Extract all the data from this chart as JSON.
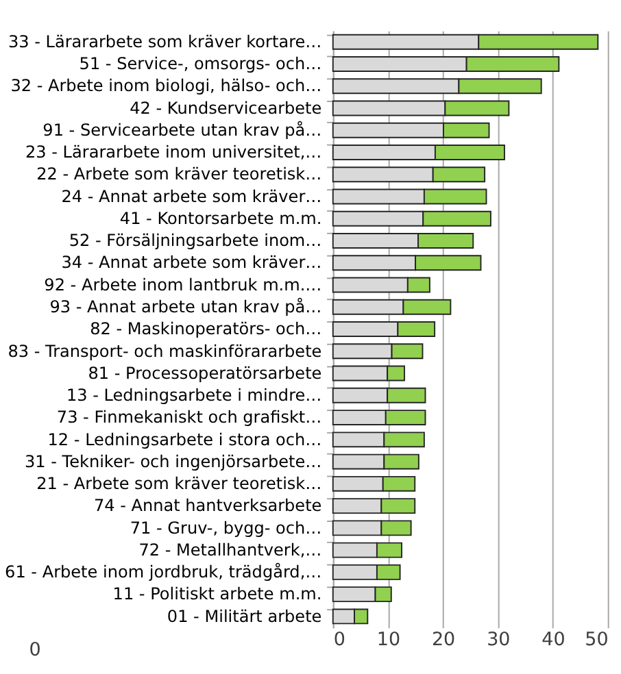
{
  "chart_data": {
    "type": "bar",
    "orientation": "horizontal",
    "stacked": true,
    "categories": [
      "33 - Lärararbete som kräver kortare…",
      "51 - Service-, omsorgs- och…",
      "32 - Arbete inom biologi, hälso- och…",
      "42 - Kundservicearbete",
      "91 - Servicearbete utan krav på…",
      "23 - Lärararbete inom universitet,…",
      "22 - Arbete som kräver teoretisk…",
      "24 - Annat arbete som kräver…",
      "41 - Kontorsarbete m.m.",
      "52 - Försäljningsarbete inom…",
      "34 - Annat arbete som kräver…",
      "92 - Arbete inom lantbruk m.m.…",
      "93 - Annat arbete utan krav på…",
      "82 - Maskinoperatörs- och…",
      "83 - Transport- och maskinförararbete",
      "81 - Processoperatörsarbete",
      "13 - Ledningsarbete i mindre…",
      "73 - Finmekaniskt och grafiskt…",
      "12 - Ledningsarbete i stora och…",
      "31 - Tekniker- och ingenjörsarbete…",
      "21 - Arbete som kräver teoretisk…",
      "74 - Annat hantverksarbete",
      "71 - Gruv-, bygg- och…",
      "72 - Metallhantverk,…",
      "61 - Arbete inom jordbruk, trädgård,…",
      "11 - Politiskt arbete m.m.",
      "01 - Militärt arbete"
    ],
    "series": [
      {
        "color": "#d9d9d9",
        "values": [
          26.5,
          24.3,
          22.9,
          20.4,
          20.1,
          18.6,
          18.2,
          16.6,
          16.4,
          15.5,
          15.0,
          13.6,
          12.8,
          11.8,
          10.7,
          9.9,
          9.9,
          9.6,
          9.3,
          9.3,
          9.1,
          8.8,
          8.8,
          8.0,
          8.0,
          7.7,
          3.9
        ]
      },
      {
        "color": "#92d050",
        "values": [
          21.7,
          16.8,
          15.0,
          11.6,
          8.3,
          12.6,
          9.4,
          11.3,
          12.3,
          10.0,
          11.9,
          4.0,
          8.6,
          6.7,
          5.6,
          3.1,
          6.9,
          7.2,
          7.3,
          6.3,
          5.8,
          6.1,
          5.4,
          4.5,
          4.2,
          2.9,
          2.4
        ]
      }
    ],
    "xlim": [
      0,
      50
    ],
    "xticks": [
      0,
      10,
      20,
      30,
      40,
      50
    ],
    "grid": "x",
    "legend": false,
    "annotations": [
      "0"
    ]
  }
}
